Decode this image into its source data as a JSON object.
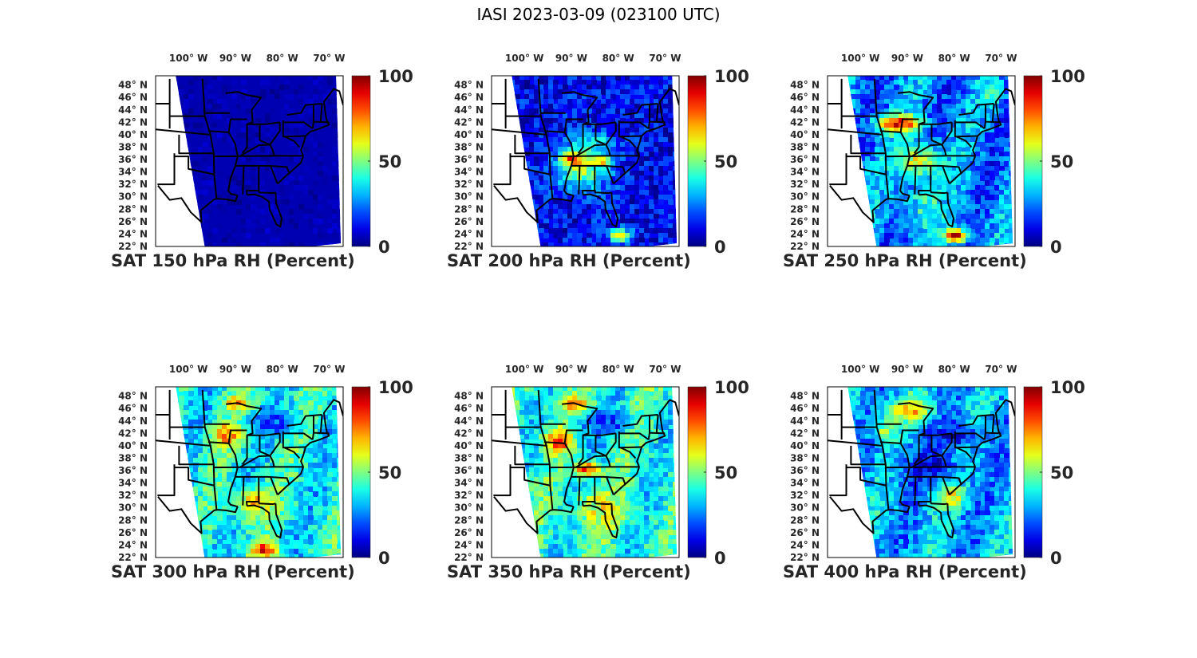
{
  "suptitle": "IASI 2023-03-09 (023100 UTC)",
  "chart_data": [
    {
      "type": "heatmap",
      "title": "SAT 150 hPa RH (Percent)",
      "pressure_hPa": 150,
      "variable": "RH",
      "units": "Percent",
      "xticks": [
        "100° W",
        "90° W",
        "80° W",
        "70° W"
      ],
      "yticks": [
        "48° N",
        "46° N",
        "44° N",
        "42° N",
        "40° N",
        "38° N",
        "36° N",
        "34° N",
        "32° N",
        "30° N",
        "28° N",
        "26° N",
        "24° N",
        "22° N"
      ],
      "colorbar": {
        "min": 0,
        "max": 100,
        "ticks": [
          "0",
          "50",
          "100"
        ],
        "colormap": "jet"
      },
      "typical_value": 5,
      "moist_regions": []
    },
    {
      "type": "heatmap",
      "title": "SAT 200 hPa RH (Percent)",
      "pressure_hPa": 200,
      "variable": "RH",
      "units": "Percent",
      "xticks": [
        "100° W",
        "90° W",
        "80° W",
        "70° W"
      ],
      "yticks": [
        "48° N",
        "46° N",
        "44° N",
        "42° N",
        "40° N",
        "38° N",
        "36° N",
        "34° N",
        "32° N",
        "30° N",
        "28° N",
        "26° N",
        "24° N",
        "22° N"
      ],
      "colorbar": {
        "min": 0,
        "max": 100,
        "ticks": [
          "0",
          "50",
          "100"
        ],
        "colormap": "jet"
      },
      "typical_value": 12,
      "moist_regions": [
        {
          "lon": -88,
          "lat": 35,
          "value": 55,
          "rlon": 6,
          "rlat": 4
        },
        {
          "lon": -90,
          "lat": 36.5,
          "value": 85,
          "rlon": 2.5,
          "rlat": 1.2
        },
        {
          "lon": -84,
          "lat": 36,
          "value": 80,
          "rlon": 2,
          "rlat": 1
        },
        {
          "lon": -86,
          "lat": 39,
          "value": 40,
          "rlon": 4,
          "rlat": 2
        },
        {
          "lon": -80,
          "lat": 24,
          "value": 70,
          "rlon": 2.5,
          "rlat": 1.2
        }
      ]
    },
    {
      "type": "heatmap",
      "title": "SAT 250 hPa RH (Percent)",
      "pressure_hPa": 250,
      "variable": "RH",
      "units": "Percent",
      "xticks": [
        "100° W",
        "90° W",
        "80° W",
        "70° W"
      ],
      "yticks": [
        "48° N",
        "46° N",
        "44° N",
        "42° N",
        "40° N",
        "38° N",
        "36° N",
        "34° N",
        "32° N",
        "30° N",
        "28° N",
        "26° N",
        "24° N",
        "22° N"
      ],
      "colorbar": {
        "min": 0,
        "max": 100,
        "ticks": [
          "0",
          "50",
          "100"
        ],
        "colormap": "jet"
      },
      "typical_value": 25,
      "moist_regions": [
        {
          "lon": -92,
          "lat": 42,
          "value": 90,
          "rlon": 5,
          "rlat": 1.5
        },
        {
          "lon": -88,
          "lat": 36,
          "value": 60,
          "rlon": 5,
          "rlat": 3
        },
        {
          "lon": -86,
          "lat": 29,
          "value": 40,
          "rlon": 6,
          "rlat": 4
        },
        {
          "lon": -80,
          "lat": 24,
          "value": 88,
          "rlon": 3,
          "rlat": 1.2
        },
        {
          "lon": -72,
          "lat": 47,
          "value": 50,
          "rlon": 2,
          "rlat": 2
        }
      ]
    },
    {
      "type": "heatmap",
      "title": "SAT 300 hPa RH (Percent)",
      "pressure_hPa": 300,
      "variable": "RH",
      "units": "Percent",
      "xticks": [
        "100° W",
        "90° W",
        "80° W",
        "70° W"
      ],
      "yticks": [
        "48° N",
        "46° N",
        "44° N",
        "42° N",
        "40° N",
        "38° N",
        "36° N",
        "34° N",
        "32° N",
        "30° N",
        "28° N",
        "26° N",
        "24° N",
        "22° N"
      ],
      "colorbar": {
        "min": 0,
        "max": 100,
        "ticks": [
          "0",
          "50",
          "100"
        ],
        "colormap": "jet"
      },
      "typical_value": 38,
      "moist_regions": [
        {
          "lon": -92,
          "lat": 42,
          "value": 80,
          "rlon": 3.5,
          "rlat": 2
        },
        {
          "lon": -90,
          "lat": 47,
          "value": 70,
          "rlon": 3,
          "rlat": 1.5
        },
        {
          "lon": -86,
          "lat": 31,
          "value": 65,
          "rlon": 5,
          "rlat": 3
        },
        {
          "lon": -84,
          "lat": 23.5,
          "value": 90,
          "rlon": 3,
          "rlat": 1.3
        },
        {
          "lon": -82,
          "lat": 44,
          "value": 20,
          "rlon": 6,
          "rlat": 2
        }
      ]
    },
    {
      "type": "heatmap",
      "title": "SAT 350 hPa RH (Percent)",
      "pressure_hPa": 350,
      "variable": "RH",
      "units": "Percent",
      "xticks": [
        "100° W",
        "90° W",
        "80° W",
        "70° W"
      ],
      "yticks": [
        "48° N",
        "46° N",
        "44° N",
        "42° N",
        "40° N",
        "38° N",
        "36° N",
        "34° N",
        "32° N",
        "30° N",
        "28° N",
        "26° N",
        "24° N",
        "22° N"
      ],
      "colorbar": {
        "min": 0,
        "max": 100,
        "ticks": [
          "0",
          "50",
          "100"
        ],
        "colormap": "jet"
      },
      "typical_value": 40,
      "moist_regions": [
        {
          "lon": -93,
          "lat": 41,
          "value": 85,
          "rlon": 3,
          "rlat": 2
        },
        {
          "lon": -87,
          "lat": 36.5,
          "value": 85,
          "rlon": 3,
          "rlat": 1.2
        },
        {
          "lon": -90,
          "lat": 47,
          "value": 70,
          "rlon": 4,
          "rlat": 1.5
        },
        {
          "lon": -84,
          "lat": 30,
          "value": 60,
          "rlon": 6,
          "rlat": 4
        },
        {
          "lon": -83,
          "lat": 44,
          "value": 15,
          "rlon": 6,
          "rlat": 2
        }
      ]
    },
    {
      "type": "heatmap",
      "title": "SAT 400 hPa RH (Percent)",
      "pressure_hPa": 400,
      "variable": "RH",
      "units": "Percent",
      "xticks": [
        "100° W",
        "90° W",
        "80° W",
        "70° W"
      ],
      "yticks": [
        "48° N",
        "46° N",
        "44° N",
        "42° N",
        "40° N",
        "38° N",
        "36° N",
        "34° N",
        "32° N",
        "30° N",
        "28° N",
        "26° N",
        "24° N",
        "22° N"
      ],
      "colorbar": {
        "min": 0,
        "max": 100,
        "ticks": [
          "0",
          "50",
          "100"
        ],
        "colormap": "jet"
      },
      "typical_value": 30,
      "moist_regions": [
        {
          "lon": -90,
          "lat": 46,
          "value": 72,
          "rlon": 5,
          "rlat": 2
        },
        {
          "lon": -81,
          "lat": 32,
          "value": 68,
          "rlon": 3,
          "rlat": 2
        },
        {
          "lon": -86,
          "lat": 37,
          "value": 10,
          "rlon": 7,
          "rlat": 3
        },
        {
          "lon": -80,
          "lat": 42,
          "value": 10,
          "rlon": 5,
          "rlat": 2
        },
        {
          "lon": -95,
          "lat": 43,
          "value": 50,
          "rlon": 3,
          "rlat": 2
        }
      ]
    }
  ],
  "colors": {
    "text": "#262626",
    "border": "#000000"
  }
}
